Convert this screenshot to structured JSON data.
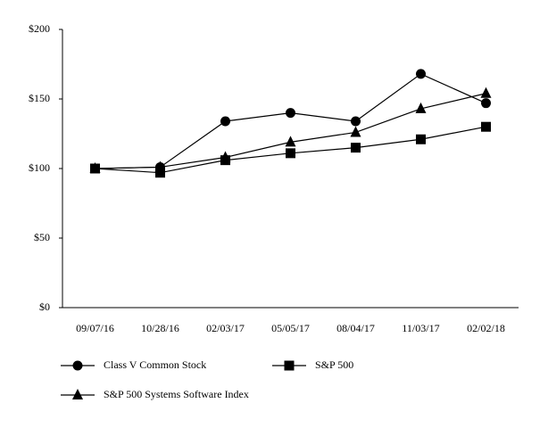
{
  "chart_data": {
    "type": "line",
    "categories": [
      "09/07/16",
      "10/28/16",
      "02/03/17",
      "05/05/17",
      "08/04/17",
      "11/03/17",
      "02/02/18"
    ],
    "series": [
      {
        "name": "Class V Common Stock",
        "color": "#000000",
        "marker": "circle",
        "values": [
          100,
          101,
          134,
          140,
          134,
          168,
          147
        ]
      },
      {
        "name": "S&P 500",
        "color": "#000000",
        "marker": "square",
        "values": [
          100,
          97,
          106,
          111,
          115,
          121,
          130
        ]
      },
      {
        "name": "S&P 500 Systems Software Index",
        "color": "#000000",
        "marker": "triangle",
        "values": [
          100,
          101,
          108,
          119,
          126,
          143,
          154
        ]
      }
    ],
    "ylim": [
      0,
      200
    ],
    "yticks": [
      {
        "value": 0,
        "label": "$0"
      },
      {
        "value": 50,
        "label": "$50"
      },
      {
        "value": 100,
        "label": "$100"
      },
      {
        "value": 150,
        "label": "$150"
      },
      {
        "value": 200,
        "label": "$200"
      }
    ],
    "grid": false
  }
}
